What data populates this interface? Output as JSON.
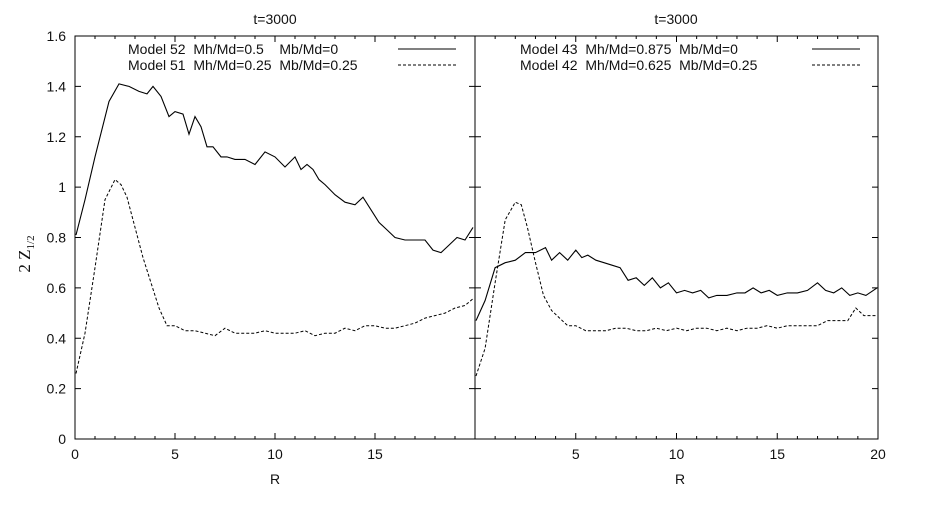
{
  "chart_data": [
    {
      "type": "line",
      "title": "t=3000",
      "xlabel": "R",
      "ylabel": "2 Z",
      "ylabel_sub": "1/2",
      "xlim": [
        0,
        20
      ],
      "ylim": [
        0,
        1.6
      ],
      "xticks": [
        "0",
        "5",
        "10",
        "15"
      ],
      "yticks": [
        "0",
        "0.2",
        "0.4",
        "0.6",
        "0.8",
        "1",
        "1.2",
        "1.4",
        "1.6"
      ],
      "legend_position": "top",
      "series": [
        {
          "name": "Model 52  Mh/Md=0.5    Mb/Md=0",
          "style": "solid",
          "x": [
            0.05,
            0.5,
            1.0,
            1.7,
            2.2,
            2.7,
            3.2,
            3.6,
            3.9,
            4.3,
            4.7,
            5.0,
            5.4,
            5.7,
            6.0,
            6.3,
            6.6,
            6.9,
            7.3,
            7.6,
            8.0,
            8.5,
            9.0,
            9.5,
            10.0,
            10.5,
            11.0,
            11.3,
            11.6,
            11.9,
            12.2,
            12.5,
            13.0,
            13.5,
            14.0,
            14.4,
            14.8,
            15.2,
            15.6,
            16.0,
            16.5,
            17.0,
            17.5,
            17.9,
            18.3,
            18.7,
            19.1,
            19.5,
            19.9
          ],
          "values": [
            0.81,
            0.95,
            1.12,
            1.34,
            1.41,
            1.4,
            1.38,
            1.37,
            1.4,
            1.36,
            1.28,
            1.3,
            1.29,
            1.21,
            1.28,
            1.24,
            1.16,
            1.16,
            1.12,
            1.12,
            1.11,
            1.11,
            1.09,
            1.14,
            1.12,
            1.08,
            1.12,
            1.07,
            1.09,
            1.07,
            1.03,
            1.01,
            0.97,
            0.94,
            0.93,
            0.96,
            0.91,
            0.86,
            0.83,
            0.8,
            0.79,
            0.79,
            0.79,
            0.75,
            0.74,
            0.77,
            0.8,
            0.79,
            0.84
          ]
        },
        {
          "name": "Model 51  Mh/Md=0.25  Mb/Md=0.25",
          "style": "dashed",
          "x": [
            0.05,
            0.5,
            1.0,
            1.5,
            2.0,
            2.3,
            2.6,
            3.0,
            3.4,
            3.8,
            4.2,
            4.6,
            5.0,
            5.5,
            6.0,
            6.5,
            7.0,
            7.5,
            8.0,
            8.5,
            9.0,
            9.5,
            10.0,
            10.5,
            11.0,
            11.5,
            12.0,
            12.5,
            13.0,
            13.5,
            14.0,
            14.5,
            15.0,
            15.5,
            16.0,
            16.5,
            17.0,
            17.5,
            18.0,
            18.5,
            19.0,
            19.5,
            19.95
          ],
          "values": [
            0.26,
            0.42,
            0.68,
            0.95,
            1.03,
            1.01,
            0.96,
            0.84,
            0.72,
            0.62,
            0.52,
            0.45,
            0.45,
            0.43,
            0.43,
            0.42,
            0.41,
            0.44,
            0.42,
            0.42,
            0.42,
            0.43,
            0.42,
            0.42,
            0.42,
            0.43,
            0.41,
            0.42,
            0.42,
            0.44,
            0.43,
            0.45,
            0.45,
            0.44,
            0.44,
            0.45,
            0.46,
            0.48,
            0.49,
            0.5,
            0.52,
            0.53,
            0.56
          ]
        }
      ]
    },
    {
      "type": "line",
      "title": "t=3000",
      "xlabel": "R",
      "xlim": [
        0,
        20
      ],
      "ylim": [
        0,
        1.6
      ],
      "xticks": [
        "5",
        "10",
        "15",
        "20"
      ],
      "legend_position": "top",
      "series": [
        {
          "name": "Model 43  Mh/Md=0.875  Mb/Md=0",
          "style": "solid",
          "x": [
            0.05,
            0.5,
            1.0,
            1.5,
            2.0,
            2.5,
            3.0,
            3.5,
            3.8,
            4.2,
            4.6,
            5.0,
            5.3,
            5.6,
            6.0,
            6.4,
            6.8,
            7.2,
            7.6,
            8.0,
            8.4,
            8.8,
            9.2,
            9.6,
            10.0,
            10.4,
            10.8,
            11.2,
            11.6,
            12.0,
            12.5,
            13.0,
            13.4,
            13.8,
            14.2,
            14.6,
            15.0,
            15.5,
            16.0,
            16.5,
            17.0,
            17.4,
            17.8,
            18.2,
            18.6,
            19.0,
            19.4,
            19.95
          ],
          "values": [
            0.47,
            0.55,
            0.68,
            0.7,
            0.71,
            0.74,
            0.74,
            0.76,
            0.71,
            0.74,
            0.71,
            0.75,
            0.72,
            0.73,
            0.71,
            0.7,
            0.69,
            0.68,
            0.63,
            0.64,
            0.61,
            0.64,
            0.6,
            0.62,
            0.58,
            0.59,
            0.58,
            0.59,
            0.56,
            0.57,
            0.57,
            0.58,
            0.58,
            0.6,
            0.58,
            0.59,
            0.57,
            0.58,
            0.58,
            0.59,
            0.62,
            0.59,
            0.58,
            0.6,
            0.57,
            0.58,
            0.57,
            0.6
          ]
        },
        {
          "name": "Model 42  Mh/Md=0.625  Mb/Md=0.25",
          "style": "dashed",
          "x": [
            0.05,
            0.5,
            1.0,
            1.5,
            2.0,
            2.3,
            2.6,
            3.0,
            3.4,
            3.8,
            4.2,
            4.6,
            5.0,
            5.5,
            6.0,
            6.5,
            7.0,
            7.5,
            8.0,
            8.5,
            9.0,
            9.5,
            10.0,
            10.5,
            11.0,
            11.5,
            12.0,
            12.5,
            13.0,
            13.5,
            14.0,
            14.5,
            15.0,
            15.5,
            16.0,
            16.5,
            17.0,
            17.5,
            18.0,
            18.5,
            18.9,
            19.3,
            19.95
          ],
          "values": [
            0.25,
            0.36,
            0.62,
            0.87,
            0.94,
            0.93,
            0.84,
            0.7,
            0.57,
            0.51,
            0.48,
            0.45,
            0.45,
            0.43,
            0.43,
            0.43,
            0.44,
            0.44,
            0.43,
            0.43,
            0.44,
            0.43,
            0.44,
            0.43,
            0.44,
            0.44,
            0.43,
            0.44,
            0.43,
            0.44,
            0.44,
            0.45,
            0.44,
            0.45,
            0.45,
            0.45,
            0.45,
            0.47,
            0.47,
            0.47,
            0.52,
            0.49,
            0.49
          ]
        }
      ]
    }
  ]
}
